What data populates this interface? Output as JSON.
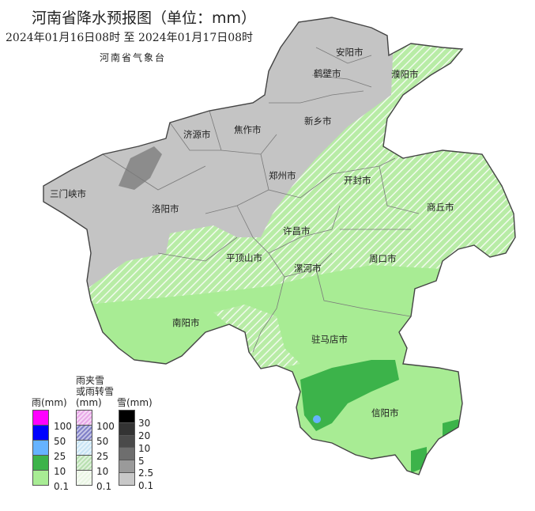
{
  "title": "河南省降水预报图（单位：mm）",
  "subtitle": "2024年01月16日08时  至  2024年01月17日08时",
  "issuer": "河南省气象台",
  "cities": [
    "安阳市",
    "鹤壁市",
    "濮阳市",
    "新乡市",
    "焦作市",
    "济源市",
    "三门峡市",
    "郑州市",
    "开封市",
    "商丘市",
    "洛阳市",
    "许昌市",
    "平顶山市",
    "漯河市",
    "周口市",
    "南阳市",
    "驻马店市",
    "信阳市"
  ],
  "legend": {
    "rain": {
      "title": "雨(mm)",
      "colors": [
        "#ff00ff",
        "#0000ff",
        "#66b3ff",
        "#3cb34a",
        "#a8ec94"
      ],
      "levels": [
        "100",
        "50",
        "25",
        "10",
        "0.1"
      ]
    },
    "mixed": {
      "title_line1": "雨夹雪",
      "title_line2": "或雨转雪",
      "title_line3": "(mm)",
      "colors": [
        "#e8a8e8",
        "#8080c8",
        "#c8e4f4",
        "#b8e0b0",
        "#eaf6e4"
      ],
      "levels": [
        "100",
        "50",
        "25",
        "10",
        "0.1"
      ]
    },
    "snow": {
      "title": "雪(mm)",
      "colors": [
        "#000000",
        "#333333",
        "#4a4a4a",
        "#6e6e6e",
        "#9a9a9a",
        "#c8c8c8"
      ],
      "levels": [
        "30",
        "20",
        "10",
        "5",
        "2.5",
        "0.1"
      ]
    }
  },
  "colors": {
    "snow_light": "#c4c4c4",
    "rain_light": "#a8ec94",
    "rain_moderate": "#3cb34a"
  }
}
